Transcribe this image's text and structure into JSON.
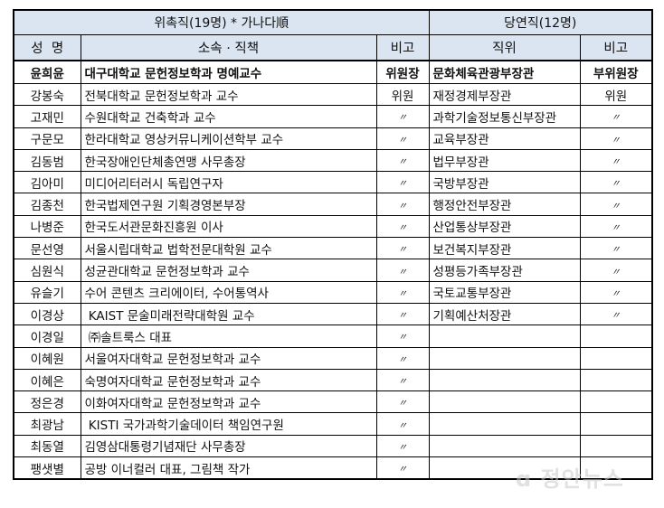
{
  "header": {
    "appointed_group": "위촉직(19명) * 가나다順",
    "ex_officio_group": "당연직(12명)",
    "col_name": "성  명",
    "col_affiliation": "소속 · 직책",
    "col_note": "비고",
    "col_position": "직위",
    "col_note2": "비고"
  },
  "rows": [
    {
      "name": "윤희윤",
      "affiliation": "대구대학교 문헌정보학과 명예교수",
      "note": "위원장",
      "position": "문화체육관광부장관",
      "note2": "부위원장"
    },
    {
      "name": "강봉숙",
      "affiliation": "전북대학교 문헌정보학과 교수",
      "note": "위원",
      "position": "재정경제부장관",
      "note2": "위원"
    },
    {
      "name": "고재민",
      "affiliation": "수원대학교 건축학과 교수",
      "note": "〃",
      "position": "과학기술정보통신부장관",
      "note2": "〃"
    },
    {
      "name": "구문모",
      "affiliation": "한라대학교 영상커뮤니케이션학부 교수",
      "note": "〃",
      "position": "교육부장관",
      "note2": "〃"
    },
    {
      "name": "김동범",
      "affiliation": "한국장애인단체총연맹 사무총장",
      "note": "〃",
      "position": "법무부장관",
      "note2": "〃"
    },
    {
      "name": "김아미",
      "affiliation": "미디어리터러시 독립연구자",
      "note": "〃",
      "position": "국방부장관",
      "note2": "〃"
    },
    {
      "name": "김종천",
      "affiliation": "한국법제연구원 기획경영본부장",
      "note": "〃",
      "position": "행정안전부장관",
      "note2": "〃"
    },
    {
      "name": "나병준",
      "affiliation": "한국도서관문화진흥원 이사",
      "note": "〃",
      "position": "산업통상부장관",
      "note2": "〃"
    },
    {
      "name": "문선영",
      "affiliation": "서울시립대학교 법학전문대학원 교수",
      "note": "〃",
      "position": "보건복지부장관",
      "note2": "〃"
    },
    {
      "name": "심원식",
      "affiliation": "성균관대학교 문헌정보학과 교수",
      "note": "〃",
      "position": "성평등가족부장관",
      "note2": "〃"
    },
    {
      "name": "유슬기",
      "affiliation": "수어 콘텐츠 크리에이터, 수어통역사",
      "note": "〃",
      "position": "국토교통부장관",
      "note2": "〃"
    },
    {
      "name": "이경상",
      "affiliation": " KAIST 문술미래전략대학원 교수",
      "note": "〃",
      "position": "기획예산처장관",
      "note2": "〃"
    },
    {
      "name": "이경일",
      "affiliation": " ㈜솔트룩스 대표",
      "note": "〃",
      "position": "",
      "note2": ""
    },
    {
      "name": "이혜원",
      "affiliation": "서울여자대학교 문헌정보학과 교수",
      "note": "〃",
      "position": "",
      "note2": ""
    },
    {
      "name": "이혜은",
      "affiliation": "숙명여자대학교 문헌정보학과 교수",
      "note": "〃",
      "position": "",
      "note2": ""
    },
    {
      "name": "정은경",
      "affiliation": "이화여자대학교 문헌정보학과 교수",
      "note": "〃",
      "position": "",
      "note2": ""
    },
    {
      "name": "최광남",
      "affiliation": " KISTI 국가과학기술데이터 책임연구원",
      "note": "〃",
      "position": "",
      "note2": ""
    },
    {
      "name": "최동열",
      "affiliation": "김영삼대통령기념재단 사무총장",
      "note": "〃",
      "position": "",
      "note2": ""
    },
    {
      "name": "팽샛별",
      "affiliation": "공방 이너컬러 대표, 그림책 작가",
      "note": "〃",
      "position": "",
      "note2": ""
    }
  ],
  "colors": {
    "header_bg": "#dbe5f1",
    "border": "#000000"
  },
  "watermark": "정안뉴스"
}
